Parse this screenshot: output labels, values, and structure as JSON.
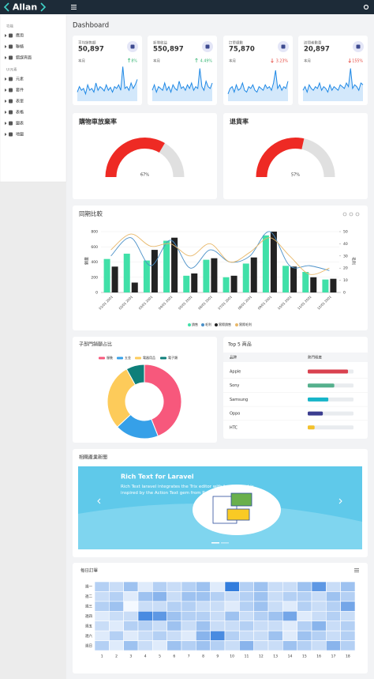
{
  "header": {
    "logo": "Allan"
  },
  "sidebar": {
    "sections": [
      {
        "title": "功能",
        "items": [
          "應用",
          "聯絡",
          "錯誤頁面"
        ]
      },
      {
        "title": "UI元素",
        "items": [
          "元素",
          "套件",
          "表單",
          "表格",
          "圖表",
          "地圖"
        ]
      }
    ]
  },
  "page_title": "Dashboard",
  "stats": [
    {
      "label": "平均銷售額",
      "value": "50,897",
      "period": "本月",
      "change": "8%",
      "direction": "up",
      "type": "area",
      "ylim": [
        0,
        100
      ],
      "values": [
        25,
        40,
        30,
        35,
        20,
        45,
        30,
        35,
        25,
        50,
        30,
        40,
        35,
        28,
        45,
        30,
        38,
        25,
        40,
        35,
        45,
        30,
        95,
        35,
        40,
        30,
        50,
        35,
        45,
        60
      ]
    },
    {
      "label": "新增收益",
      "value": "550,897",
      "period": "本月",
      "change": "4.49%",
      "direction": "up",
      "type": "area",
      "ylim": [
        0,
        100
      ],
      "values": [
        30,
        45,
        25,
        40,
        35,
        30,
        50,
        30,
        40,
        25,
        45,
        35,
        30,
        55,
        35,
        40,
        30,
        45,
        35,
        50,
        30,
        40,
        35,
        90,
        40,
        30,
        55,
        40,
        35,
        50
      ]
    },
    {
      "label": "訂單總數",
      "value": "75,870",
      "period": "本月",
      "change": "3.23%",
      "direction": "down",
      "type": "area",
      "ylim": [
        0,
        100
      ],
      "values": [
        20,
        35,
        40,
        25,
        45,
        30,
        35,
        50,
        30,
        25,
        40,
        35,
        45,
        30,
        25,
        40,
        35,
        30,
        45,
        35,
        40,
        30,
        50,
        85,
        35,
        45,
        30,
        40,
        35,
        55
      ]
    },
    {
      "label": "訪問者數量",
      "value": "20,897",
      "period": "本月",
      "change": "155%",
      "direction": "down",
      "type": "area",
      "ylim": [
        0,
        100
      ],
      "values": [
        30,
        40,
        25,
        45,
        35,
        30,
        40,
        35,
        50,
        30,
        40,
        35,
        25,
        45,
        30,
        40,
        35,
        30,
        45,
        40,
        35,
        50,
        40,
        90,
        35,
        45,
        40,
        30,
        50,
        45
      ]
    }
  ],
  "gauges": [
    {
      "type": "gauge",
      "title": "購物車放棄率",
      "value": 67,
      "value_label": "67%",
      "ylim": [
        0,
        100
      ],
      "color": "#ee2a24"
    },
    {
      "type": "gauge",
      "title": "退貨率",
      "value": 57,
      "value_label": "57%",
      "ylim": [
        0,
        100
      ],
      "color": "#ee2a24"
    }
  ],
  "comparison": {
    "type": "bar-line",
    "title": "同期比較",
    "ylabel": "銷量",
    "y2label": "毛利",
    "categories": [
      "01/01 2001",
      "02/01 2001",
      "03/01 2001",
      "04/01 2001",
      "05/01 2001",
      "06/01 2001",
      "07/01 2001",
      "08/01 2001",
      "09/01 2001",
      "10/01 2001",
      "11/01 2001",
      "12/01 2001"
    ],
    "ylim": [
      0,
      800
    ],
    "yticks": [
      0,
      200,
      400,
      600,
      800
    ],
    "y2lim": [
      0,
      50
    ],
    "y2ticks": [
      0,
      10,
      20,
      30,
      40,
      50
    ],
    "series": [
      {
        "name": "銷售",
        "type": "bar",
        "color": "#40e0a8",
        "values": [
          440,
          510,
          420,
          680,
          220,
          430,
          200,
          380,
          750,
          350,
          270,
          170
        ]
      },
      {
        "name": "毛利",
        "type": "line",
        "axis": "y2",
        "color": "#4a90c8",
        "values": [
          30,
          45,
          22,
          43,
          20,
          35,
          25,
          30,
          50,
          22,
          22,
          18
        ]
      },
      {
        "name": "實際銷售",
        "type": "bar",
        "color": "#222222",
        "values": [
          340,
          130,
          560,
          720,
          250,
          450,
          220,
          460,
          800,
          340,
          200,
          180
        ]
      },
      {
        "name": "實際毛利",
        "type": "line",
        "axis": "y2",
        "color": "#e8b86a",
        "values": [
          35,
          48,
          38,
          40,
          30,
          40,
          25,
          33,
          45,
          30,
          15,
          20
        ]
      }
    ]
  },
  "donut": {
    "type": "pie",
    "title": "子部門銷額占比",
    "categories": [
      "服裝",
      "五金",
      "電器用品",
      "電子類"
    ],
    "values": [
      44,
      19,
      29,
      8
    ],
    "colors": [
      "#f7587c",
      "#36a0e8",
      "#fdcb5a",
      "#0e7f7a"
    ]
  },
  "top5": {
    "type": "progress",
    "title": "Top 5 商品",
    "columns": [
      "品牌",
      "熱門程度"
    ],
    "xlim": [
      0,
      100
    ],
    "rows": [
      {
        "name": "Apple",
        "value": 88,
        "color": "#d9414f"
      },
      {
        "name": "Sony",
        "value": 58,
        "color": "#55b08d"
      },
      {
        "name": "Samsung",
        "value": 45,
        "color": "#17b5c9"
      },
      {
        "name": "Oppo",
        "value": 33,
        "color": "#3b3d8f"
      },
      {
        "name": "HTC",
        "value": 15,
        "color": "#f3c12c"
      }
    ]
  },
  "news": {
    "title": "相關產業新聞",
    "headline": "Rich Text for Laravel",
    "text": "Rich Text laravel integrates the Trix editor with Laravel and is inspired by the Action Text gem from Rails...."
  },
  "heatmap": {
    "type": "heatmap",
    "title": "每日訂單",
    "rows": [
      "週一",
      "週二",
      "週三",
      "週四",
      "週五",
      "週六",
      "週日"
    ],
    "columns": [
      1,
      2,
      3,
      4,
      5,
      6,
      7,
      8,
      9,
      10,
      11,
      12,
      13,
      14,
      15,
      16,
      17,
      18
    ],
    "zlim": [
      0,
      10
    ],
    "colors": [
      "#f4f9ff",
      "#1e6fd9"
    ],
    "values": [
      [
        3,
        2,
        4,
        1,
        3,
        2,
        3,
        4,
        1,
        9,
        3,
        4,
        2,
        2,
        4,
        7,
        2,
        4
      ],
      [
        2,
        3,
        1,
        4,
        5,
        2,
        4,
        4,
        3,
        2,
        3,
        4,
        2,
        3,
        3,
        2,
        4,
        3
      ],
      [
        3,
        4,
        0,
        2,
        2,
        3,
        3,
        2,
        2,
        1,
        3,
        4,
        2,
        1,
        3,
        2,
        3,
        6
      ],
      [
        1,
        2,
        2,
        8,
        7,
        4,
        3,
        3,
        2,
        4,
        2,
        3,
        4,
        6,
        1,
        2,
        3,
        2
      ],
      [
        2,
        1,
        3,
        3,
        2,
        4,
        2,
        4,
        2,
        2,
        3,
        2,
        2,
        1,
        3,
        5,
        2,
        3
      ],
      [
        1,
        3,
        1,
        2,
        3,
        2,
        1,
        5,
        8,
        3,
        2,
        2,
        4,
        1,
        4,
        3,
        2,
        3
      ],
      [
        3,
        1,
        4,
        2,
        1,
        4,
        3,
        4,
        3,
        2,
        5,
        2,
        2,
        4,
        3,
        2,
        5,
        3
      ]
    ]
  }
}
